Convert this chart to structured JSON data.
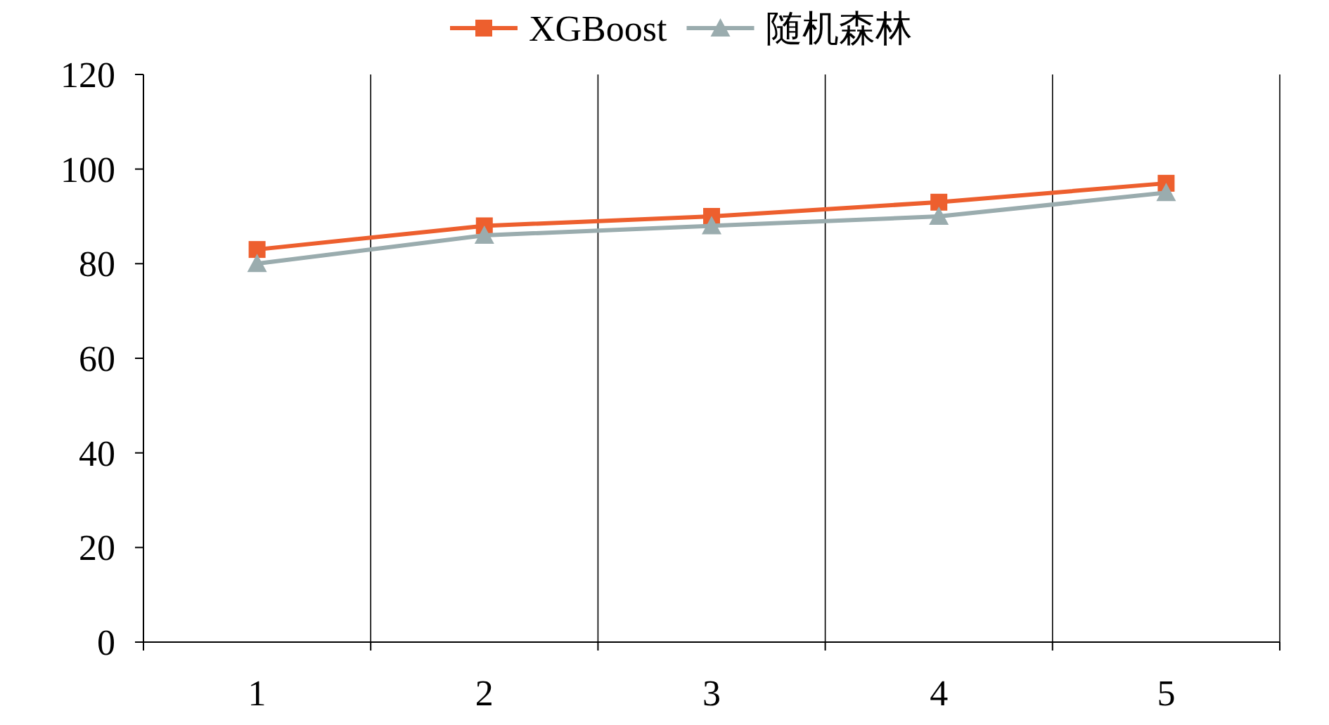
{
  "chart_data": {
    "type": "line",
    "categories": [
      "1",
      "2",
      "3",
      "4",
      "5"
    ],
    "series": [
      {
        "name": "XGBoost",
        "color": "#ed5f2e",
        "marker": "square",
        "values": [
          83,
          88,
          90,
          93,
          97
        ]
      },
      {
        "name": "随机森林",
        "color": "#9aacae",
        "marker": "triangle",
        "values": [
          80,
          86,
          88,
          90,
          95
        ]
      }
    ],
    "ylim": [
      0,
      120
    ],
    "yticks": [
      0,
      20,
      40,
      60,
      80,
      100,
      120
    ],
    "grid": "x",
    "legend": "top",
    "line_style": "solid"
  }
}
